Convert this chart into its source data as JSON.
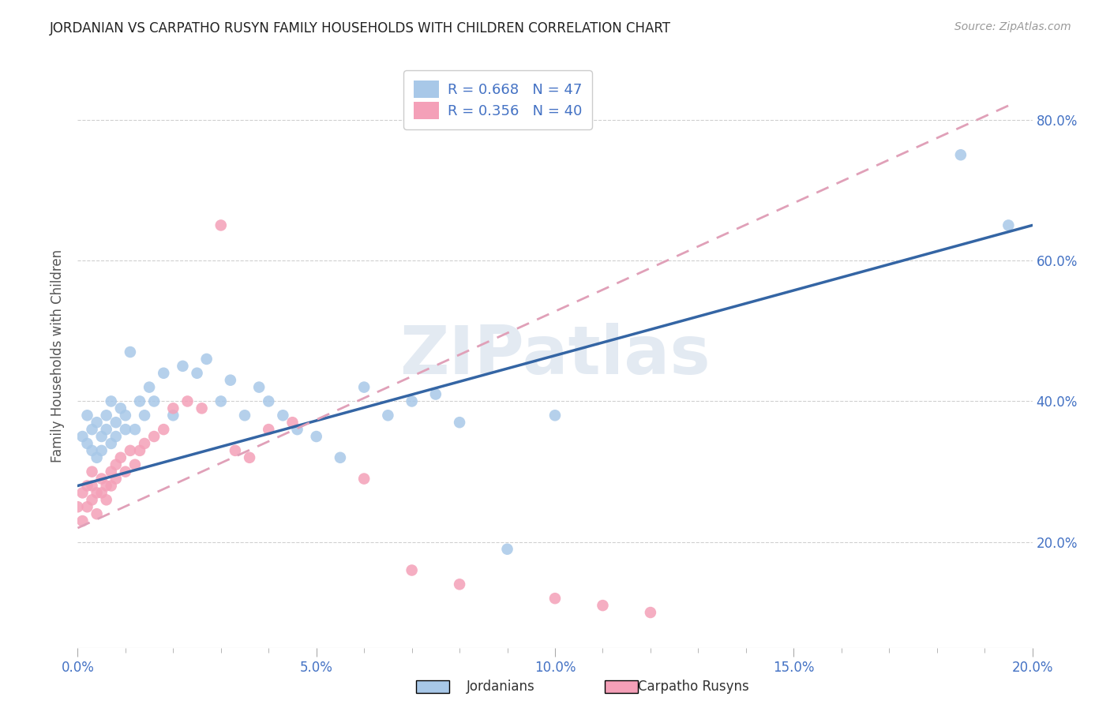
{
  "title": "JORDANIAN VS CARPATHO RUSYN FAMILY HOUSEHOLDS WITH CHILDREN CORRELATION CHART",
  "source": "Source: ZipAtlas.com",
  "ylabel": "Family Households with Children",
  "watermark": "ZIPatlas",
  "title_color": "#222222",
  "source_color": "#999999",
  "blue_color": "#a8c8e8",
  "blue_line_color": "#3465a4",
  "pink_color": "#f4a0b8",
  "pink_dash_color": "#e0a0b8",
  "legend_text_color": "#4472c4",
  "axis_color": "#4472c4",
  "grid_color": "#d0d0d0",
  "xlim": [
    0.0,
    0.2
  ],
  "ylim": [
    0.05,
    0.88
  ],
  "xticks": [
    0.0,
    0.05,
    0.1,
    0.15,
    0.2
  ],
  "yticks": [
    0.2,
    0.4,
    0.6,
    0.8
  ],
  "jordanians_x": [
    0.001,
    0.002,
    0.002,
    0.003,
    0.003,
    0.004,
    0.004,
    0.005,
    0.005,
    0.006,
    0.006,
    0.007,
    0.007,
    0.008,
    0.008,
    0.009,
    0.01,
    0.01,
    0.011,
    0.012,
    0.013,
    0.014,
    0.015,
    0.016,
    0.018,
    0.02,
    0.022,
    0.025,
    0.027,
    0.03,
    0.032,
    0.035,
    0.038,
    0.04,
    0.043,
    0.046,
    0.05,
    0.055,
    0.06,
    0.065,
    0.07,
    0.075,
    0.08,
    0.09,
    0.1,
    0.185,
    0.195
  ],
  "jordanians_y": [
    0.35,
    0.34,
    0.38,
    0.36,
    0.33,
    0.37,
    0.32,
    0.35,
    0.33,
    0.36,
    0.38,
    0.34,
    0.4,
    0.37,
    0.35,
    0.39,
    0.38,
    0.36,
    0.47,
    0.36,
    0.4,
    0.38,
    0.42,
    0.4,
    0.44,
    0.38,
    0.45,
    0.44,
    0.46,
    0.4,
    0.43,
    0.38,
    0.42,
    0.4,
    0.38,
    0.36,
    0.35,
    0.32,
    0.42,
    0.38,
    0.4,
    0.41,
    0.37,
    0.19,
    0.38,
    0.75,
    0.65
  ],
  "carpatho_x": [
    0.0,
    0.001,
    0.001,
    0.002,
    0.002,
    0.003,
    0.003,
    0.003,
    0.004,
    0.004,
    0.005,
    0.005,
    0.006,
    0.006,
    0.007,
    0.007,
    0.008,
    0.008,
    0.009,
    0.01,
    0.011,
    0.012,
    0.013,
    0.014,
    0.016,
    0.018,
    0.02,
    0.023,
    0.026,
    0.03,
    0.033,
    0.036,
    0.04,
    0.045,
    0.06,
    0.07,
    0.08,
    0.1,
    0.11,
    0.12
  ],
  "carpatho_y": [
    0.25,
    0.27,
    0.23,
    0.28,
    0.25,
    0.3,
    0.28,
    0.26,
    0.27,
    0.24,
    0.29,
    0.27,
    0.28,
    0.26,
    0.3,
    0.28,
    0.31,
    0.29,
    0.32,
    0.3,
    0.33,
    0.31,
    0.33,
    0.34,
    0.35,
    0.36,
    0.39,
    0.4,
    0.39,
    0.65,
    0.33,
    0.32,
    0.36,
    0.37,
    0.29,
    0.16,
    0.14,
    0.12,
    0.11,
    0.1
  ],
  "blue_line_x": [
    0.0,
    0.2
  ],
  "blue_line_y": [
    0.28,
    0.65
  ],
  "pink_line_x": [
    0.0,
    0.195
  ],
  "pink_line_y": [
    0.22,
    0.82
  ]
}
